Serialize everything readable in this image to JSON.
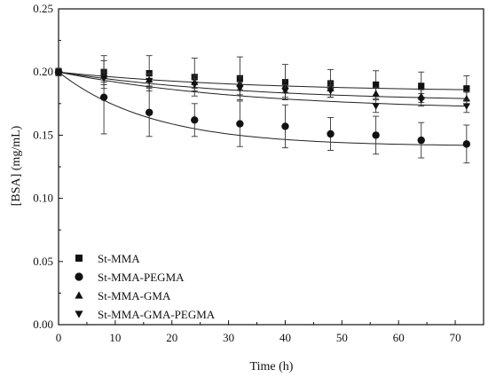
{
  "chart_data": {
    "type": "scatter",
    "title": "",
    "xlabel": "Time (h)",
    "ylabel": "[BSA] (mg/mL)",
    "xlim": [
      0,
      75
    ],
    "ylim": [
      0,
      0.25
    ],
    "x_ticks": [
      0,
      10,
      20,
      30,
      40,
      50,
      60,
      70
    ],
    "y_ticks": [
      0.0,
      0.05,
      0.1,
      0.15,
      0.2,
      0.25
    ],
    "grid": false,
    "legend_position": "bottom-left",
    "fitted_curves": true,
    "series": [
      {
        "name": "St-MMA",
        "marker": "square",
        "x": [
          0,
          8,
          16,
          24,
          32,
          40,
          48,
          56,
          64,
          72
        ],
        "y": [
          0.2,
          0.2,
          0.199,
          0.196,
          0.195,
          0.192,
          0.191,
          0.19,
          0.189,
          0.187
        ],
        "err": [
          0.003,
          0.013,
          0.014,
          0.015,
          0.017,
          0.014,
          0.011,
          0.011,
          0.011,
          0.01
        ],
        "fit_end": 0.186
      },
      {
        "name": "St-MMA-PEGMA",
        "marker": "circle",
        "x": [
          0,
          8,
          16,
          24,
          32,
          40,
          48,
          56,
          64,
          72
        ],
        "y": [
          0.2,
          0.18,
          0.168,
          0.162,
          0.159,
          0.157,
          0.151,
          0.15,
          0.146,
          0.143
        ],
        "err": [
          0.003,
          0.029,
          0.019,
          0.013,
          0.018,
          0.017,
          0.013,
          0.015,
          0.014,
          0.015
        ],
        "fit_end": 0.142
      },
      {
        "name": "St-MMA-GMA",
        "marker": "triangle-up",
        "x": [
          0,
          8,
          16,
          24,
          32,
          40,
          48,
          56,
          64,
          72
        ],
        "y": [
          0.2,
          0.197,
          0.194,
          0.192,
          0.191,
          0.189,
          0.187,
          0.183,
          0.181,
          0.179
        ],
        "err": [
          0.003,
          0.005,
          0.005,
          0.005,
          0.005,
          0.005,
          0.005,
          0.005,
          0.005,
          0.005
        ],
        "fit_end": 0.179
      },
      {
        "name": "St-MMA-GMA-PEGMA",
        "marker": "triangle-down",
        "x": [
          0,
          8,
          16,
          24,
          32,
          40,
          48,
          56,
          64,
          72
        ],
        "y": [
          0.2,
          0.195,
          0.193,
          0.19,
          0.187,
          0.185,
          0.185,
          0.173,
          0.178,
          0.173
        ],
        "err": [
          0.003,
          0.005,
          0.005,
          0.005,
          0.005,
          0.005,
          0.005,
          0.005,
          0.005,
          0.005
        ],
        "fit_end": 0.173
      }
    ]
  }
}
